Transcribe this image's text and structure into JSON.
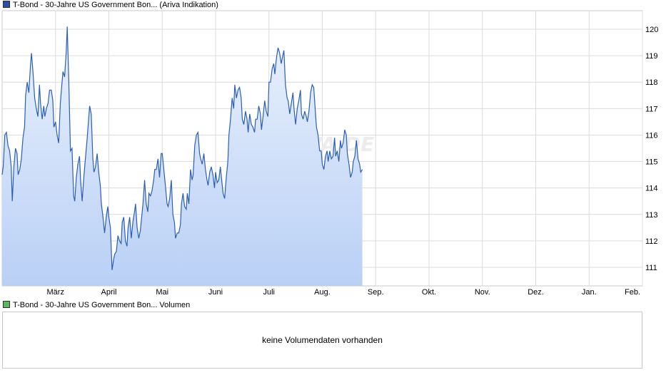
{
  "legend": {
    "price_label": "T-Bond - 30-Jahre US Government Bon... (Ariva Indikation)",
    "price_color": "#2b4fa5",
    "volume_label": "T-Bond - 30-Jahre US Government Bon... Volumen",
    "volume_color": "#5cb85c"
  },
  "watermark": "ARIVA.DE",
  "volume_panel": {
    "message": "keine Volumendaten vorhanden"
  },
  "chart_data": {
    "type": "area",
    "line_color": "#2b5fb5",
    "fill_top_color": "#eaf1fd",
    "fill_bottom_color": "#b9d0f5",
    "y_axis_position": "right",
    "grid": true,
    "ylim": [
      110.3,
      120.7
    ],
    "yticks": [
      111,
      112,
      113,
      114,
      115,
      116,
      117,
      118,
      119,
      120
    ],
    "x_ticks": [
      {
        "label": "März",
        "x": 1.5
      },
      {
        "label": "April",
        "x": 2.5
      },
      {
        "label": "Mai",
        "x": 3.5
      },
      {
        "label": "Juni",
        "x": 4.5
      },
      {
        "label": "Juli",
        "x": 5.5
      },
      {
        "label": "Aug.",
        "x": 6.5
      },
      {
        "label": "Sep.",
        "x": 7.5
      },
      {
        "label": "Okt.",
        "x": 8.5
      },
      {
        "label": "Nov.",
        "x": 9.5
      },
      {
        "label": "Dez.",
        "x": 10.5
      },
      {
        "label": "Jan.",
        "x": 11.5
      },
      {
        "label": "Feb.",
        "x": 12.5
      }
    ],
    "xlim": [
      0.5,
      12.5
    ],
    "series": [
      {
        "points": [
          [
            0.5,
            114.5
          ],
          [
            0.52,
            114.8
          ],
          [
            0.55,
            116.0
          ],
          [
            0.58,
            116.1
          ],
          [
            0.61,
            115.6
          ],
          [
            0.64,
            115.4
          ],
          [
            0.67,
            114.8
          ],
          [
            0.69,
            113.5
          ],
          [
            0.72,
            114.8
          ],
          [
            0.75,
            115.5
          ],
          [
            0.78,
            115.3
          ],
          [
            0.8,
            114.5
          ],
          [
            0.83,
            114.7
          ],
          [
            0.86,
            115.1
          ],
          [
            0.89,
            115.9
          ],
          [
            0.92,
            116.3
          ],
          [
            0.94,
            117.5
          ],
          [
            0.97,
            118.0
          ],
          [
            1.0,
            117.6
          ],
          [
            1.03,
            118.6
          ],
          [
            1.05,
            119.1
          ],
          [
            1.08,
            118.3
          ],
          [
            1.11,
            117.4
          ],
          [
            1.14,
            117.0
          ],
          [
            1.17,
            116.7
          ],
          [
            1.2,
            117.9
          ],
          [
            1.22,
            117.2
          ],
          [
            1.25,
            116.6
          ],
          [
            1.28,
            117.1
          ],
          [
            1.3,
            116.7
          ],
          [
            1.33,
            117.0
          ],
          [
            1.36,
            117.2
          ],
          [
            1.39,
            117.7
          ],
          [
            1.42,
            117.7
          ],
          [
            1.45,
            117.3
          ],
          [
            1.47,
            116.3
          ],
          [
            1.5,
            116.5
          ],
          [
            1.53,
            116.0
          ],
          [
            1.56,
            115.7
          ],
          [
            1.59,
            117.2
          ],
          [
            1.61,
            117.7
          ],
          [
            1.64,
            118.4
          ],
          [
            1.67,
            118.2
          ],
          [
            1.7,
            119.1
          ],
          [
            1.72,
            120.1
          ],
          [
            1.75,
            118.0
          ],
          [
            1.78,
            115.4
          ],
          [
            1.81,
            115.5
          ],
          [
            1.84,
            113.7
          ],
          [
            1.86,
            113.5
          ],
          [
            1.89,
            114.4
          ],
          [
            1.92,
            114.9
          ],
          [
            1.95,
            115.2
          ],
          [
            1.97,
            114.3
          ],
          [
            2.0,
            113.5
          ],
          [
            2.03,
            114.4
          ],
          [
            2.06,
            115.1
          ],
          [
            2.09,
            115.8
          ],
          [
            2.11,
            116.3
          ],
          [
            2.14,
            117.1
          ],
          [
            2.17,
            116.8
          ],
          [
            2.2,
            115.1
          ],
          [
            2.22,
            114.6
          ],
          [
            2.25,
            114.8
          ],
          [
            2.28,
            115.3
          ],
          [
            2.31,
            114.6
          ],
          [
            2.34,
            114.1
          ],
          [
            2.36,
            113.4
          ],
          [
            2.39,
            112.9
          ],
          [
            2.42,
            112.3
          ],
          [
            2.45,
            112.9
          ],
          [
            2.48,
            113.3
          ],
          [
            2.5,
            112.9
          ],
          [
            2.53,
            112.5
          ],
          [
            2.56,
            110.9
          ],
          [
            2.59,
            111.3
          ],
          [
            2.61,
            111.5
          ],
          [
            2.64,
            111.6
          ],
          [
            2.67,
            112.2
          ],
          [
            2.7,
            112.0
          ],
          [
            2.73,
            111.9
          ],
          [
            2.75,
            112.7
          ],
          [
            2.78,
            112.9
          ],
          [
            2.81,
            112.0
          ],
          [
            2.84,
            111.8
          ],
          [
            2.86,
            112.5
          ],
          [
            2.89,
            112.9
          ],
          [
            2.92,
            112.1
          ],
          [
            2.95,
            112.7
          ],
          [
            2.98,
            113.1
          ],
          [
            3.0,
            113.4
          ],
          [
            3.03,
            112.5
          ],
          [
            3.06,
            112.1
          ],
          [
            3.09,
            112.4
          ],
          [
            3.11,
            112.8
          ],
          [
            3.14,
            113.4
          ],
          [
            3.17,
            114.3
          ],
          [
            3.2,
            113.4
          ],
          [
            3.23,
            113.1
          ],
          [
            3.25,
            113.8
          ],
          [
            3.28,
            113.7
          ],
          [
            3.31,
            113.9
          ],
          [
            3.34,
            114.3
          ],
          [
            3.36,
            114.7
          ],
          [
            3.39,
            114.7
          ],
          [
            3.42,
            115.1
          ],
          [
            3.45,
            114.4
          ],
          [
            3.48,
            115.3
          ],
          [
            3.5,
            115.3
          ],
          [
            3.53,
            114.7
          ],
          [
            3.56,
            114.1
          ],
          [
            3.59,
            113.4
          ],
          [
            3.61,
            113.3
          ],
          [
            3.64,
            113.6
          ],
          [
            3.67,
            114.3
          ],
          [
            3.7,
            113.0
          ],
          [
            3.73,
            112.7
          ],
          [
            3.75,
            112.1
          ],
          [
            3.78,
            112.3
          ],
          [
            3.81,
            112.3
          ],
          [
            3.84,
            112.6
          ],
          [
            3.86,
            113.4
          ],
          [
            3.89,
            113.8
          ],
          [
            3.92,
            113.3
          ],
          [
            3.95,
            113.2
          ],
          [
            3.97,
            113.8
          ],
          [
            4.0,
            113.4
          ],
          [
            4.03,
            114.7
          ],
          [
            4.06,
            114.3
          ],
          [
            4.08,
            114.5
          ],
          [
            4.11,
            115.6
          ],
          [
            4.14,
            116.0
          ],
          [
            4.17,
            116.1
          ],
          [
            4.2,
            115.3
          ],
          [
            4.22,
            115.1
          ],
          [
            4.25,
            114.9
          ],
          [
            4.28,
            115.3
          ],
          [
            4.31,
            114.7
          ],
          [
            4.34,
            114.3
          ],
          [
            4.36,
            114.1
          ],
          [
            4.39,
            114.6
          ],
          [
            4.42,
            114.8
          ],
          [
            4.45,
            114.5
          ],
          [
            4.48,
            114.0
          ],
          [
            4.5,
            114.6
          ],
          [
            4.53,
            114.2
          ],
          [
            4.56,
            114.3
          ],
          [
            4.59,
            114.8
          ],
          [
            4.61,
            114.4
          ],
          [
            4.64,
            113.8
          ],
          [
            4.67,
            113.6
          ],
          [
            4.7,
            114.4
          ],
          [
            4.73,
            115.0
          ],
          [
            4.75,
            116.0
          ],
          [
            4.78,
            116.6
          ],
          [
            4.81,
            117.4
          ],
          [
            4.84,
            117.0
          ],
          [
            4.86,
            117.9
          ],
          [
            4.89,
            117.4
          ],
          [
            4.92,
            117.7
          ],
          [
            4.95,
            117.8
          ],
          [
            4.98,
            117.4
          ],
          [
            5.0,
            116.6
          ],
          [
            5.03,
            116.4
          ],
          [
            5.06,
            116.9
          ],
          [
            5.09,
            116.6
          ],
          [
            5.11,
            116.1
          ],
          [
            5.14,
            116.8
          ],
          [
            5.17,
            116.4
          ],
          [
            5.2,
            116.3
          ],
          [
            5.23,
            116.1
          ],
          [
            5.25,
            116.6
          ],
          [
            5.28,
            116.6
          ],
          [
            5.31,
            117.1
          ],
          [
            5.34,
            116.8
          ],
          [
            5.36,
            116.2
          ],
          [
            5.39,
            116.7
          ],
          [
            5.42,
            117.3
          ],
          [
            5.45,
            116.9
          ],
          [
            5.48,
            116.7
          ],
          [
            5.5,
            118.0
          ],
          [
            5.53,
            118.0
          ],
          [
            5.56,
            118.5
          ],
          [
            5.59,
            118.7
          ],
          [
            5.61,
            118.3
          ],
          [
            5.64,
            118.9
          ],
          [
            5.67,
            119.3
          ],
          [
            5.7,
            119.1
          ],
          [
            5.73,
            118.7
          ],
          [
            5.75,
            118.9
          ],
          [
            5.78,
            119.2
          ],
          [
            5.81,
            117.9
          ],
          [
            5.84,
            117.4
          ],
          [
            5.86,
            117.3
          ],
          [
            5.89,
            116.8
          ],
          [
            5.92,
            117.2
          ],
          [
            5.95,
            117.6
          ],
          [
            5.97,
            117.0
          ],
          [
            6.0,
            116.4
          ],
          [
            6.03,
            117.0
          ],
          [
            6.06,
            117.3
          ],
          [
            6.09,
            117.7
          ],
          [
            6.11,
            116.8
          ],
          [
            6.14,
            116.6
          ],
          [
            6.17,
            116.9
          ],
          [
            6.2,
            116.7
          ],
          [
            6.22,
            116.5
          ],
          [
            6.25,
            116.9
          ],
          [
            6.28,
            117.6
          ],
          [
            6.31,
            117.9
          ],
          [
            6.34,
            117.8
          ],
          [
            6.36,
            117.2
          ],
          [
            6.39,
            116.3
          ],
          [
            6.42,
            116.0
          ],
          [
            6.45,
            115.4
          ],
          [
            6.48,
            115.4
          ],
          [
            6.5,
            114.9
          ],
          [
            6.53,
            114.7
          ],
          [
            6.56,
            115.2
          ],
          [
            6.59,
            115.4
          ],
          [
            6.61,
            115.0
          ],
          [
            6.64,
            115.4
          ],
          [
            6.67,
            115.1
          ],
          [
            6.7,
            115.2
          ],
          [
            6.73,
            115.9
          ],
          [
            6.75,
            115.2
          ],
          [
            6.78,
            115.4
          ],
          [
            6.81,
            115.0
          ],
          [
            6.84,
            115.8
          ],
          [
            6.86,
            115.5
          ],
          [
            6.89,
            115.7
          ],
          [
            6.92,
            116.2
          ],
          [
            6.95,
            116.0
          ],
          [
            6.97,
            115.3
          ],
          [
            7.0,
            114.9
          ],
          [
            7.03,
            114.4
          ],
          [
            7.06,
            114.6
          ],
          [
            7.08,
            115.0
          ],
          [
            7.11,
            115.2
          ],
          [
            7.14,
            115.8
          ],
          [
            7.17,
            115.1
          ],
          [
            7.2,
            114.9
          ],
          [
            7.22,
            114.6
          ],
          [
            7.25,
            114.7
          ]
        ]
      }
    ]
  }
}
